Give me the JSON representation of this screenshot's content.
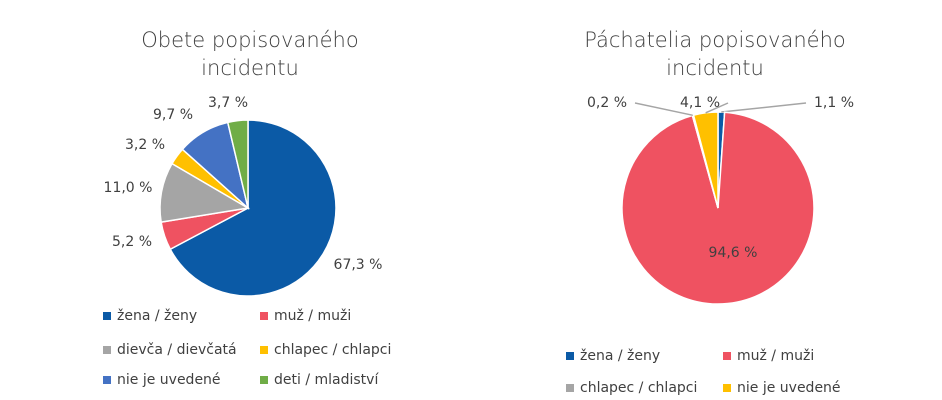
{
  "chart_data": [
    {
      "type": "pie",
      "title": "Obete popisovaného incidentu",
      "categories": [
        "žena / ženy",
        "muž / muži",
        "dievča / dievčatá",
        "chlapec / chlapci",
        "nie je uvedené",
        "deti / mladiství"
      ],
      "values": [
        67.3,
        5.2,
        11.0,
        3.2,
        9.7,
        3.7
      ],
      "value_labels": [
        "67,3 %",
        "5,2 %",
        "11,0 %",
        "3,2 %",
        "9,7 %",
        "3,7 %"
      ],
      "colors": [
        "#0b5aa6",
        "#ef5261",
        "#a5a5a5",
        "#ffc000",
        "#4472c4",
        "#70ad47"
      ]
    },
    {
      "type": "pie",
      "title": "Páchatelia popisovaného incidentu",
      "categories": [
        "žena / ženy",
        "muž / muži",
        "chlapec / chlapci",
        "nie je uvedené"
      ],
      "values": [
        1.1,
        94.6,
        0.2,
        4.1
      ],
      "value_labels": [
        "1,1 %",
        "94,6 %",
        "0,2 %",
        "4,1 %"
      ],
      "colors": [
        "#0b5aa6",
        "#ef5261",
        "#a5a5a5",
        "#ffc000"
      ]
    }
  ]
}
